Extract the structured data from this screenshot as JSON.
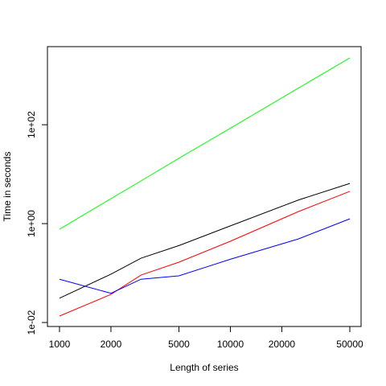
{
  "chart_data": {
    "type": "line",
    "x_label": "Length of series",
    "y_label": "Time in seconds",
    "x": [
      1000,
      2000,
      3000,
      5000,
      10000,
      25000,
      50000
    ],
    "series": [
      {
        "color": "#000000",
        "values": [
          0.031,
          0.095,
          0.2,
          0.36,
          0.9,
          3.0,
          6.5
        ]
      },
      {
        "color": "#ff0000",
        "values": [
          0.0135,
          0.037,
          0.091,
          0.166,
          0.44,
          1.75,
          4.5
        ]
      },
      {
        "color": "#0000ff",
        "values": [
          0.075,
          0.039,
          0.075,
          0.088,
          0.19,
          0.49,
          1.25
        ]
      },
      {
        "color": "#00ff00",
        "values": [
          0.77,
          3.2,
          7.3,
          21,
          85,
          550,
          2240
        ]
      }
    ],
    "xlim": [
      850,
      58200
    ],
    "ylim": [
      0.0083,
      3800
    ],
    "log_x": true,
    "log_y": true,
    "xticks": [
      1000,
      2000,
      5000,
      10000,
      20000,
      50000
    ],
    "yticks": [
      {
        "value": 0.01,
        "label": "1e-02"
      },
      {
        "value": 1,
        "label": "1e+00"
      },
      {
        "value": 100,
        "label": "1e+02"
      }
    ]
  }
}
